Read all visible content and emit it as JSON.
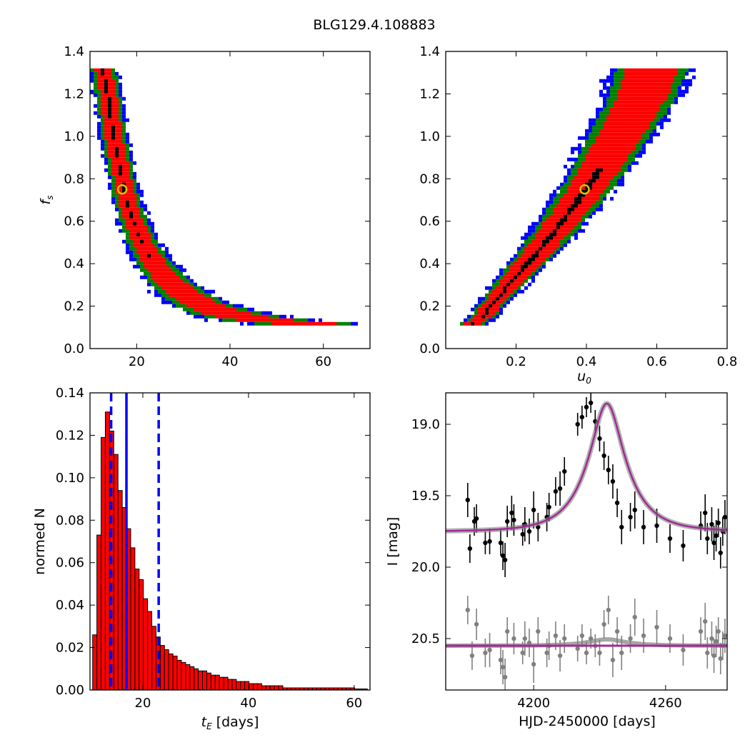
{
  "title": "BLG129.4.108883",
  "colors": {
    "c1": "#0000ff",
    "c2": "#008000",
    "c3": "#ff0000",
    "c4": "#000000",
    "marker_edge": "#d6c800",
    "hist_fill": "#ff0000",
    "model": "#a02b93",
    "gray": "#808080"
  },
  "chart_data": [
    {
      "type": "heatmap",
      "panel": "top-left",
      "ylabel": "f_s",
      "xlim": [
        10,
        70
      ],
      "ylim": [
        0.0,
        1.4
      ],
      "xticks": [
        "20",
        "40",
        "60"
      ],
      "yticks": [
        "0.0",
        "0.2",
        "0.4",
        "0.6",
        "0.8",
        "1.0",
        "1.2",
        "1.4"
      ],
      "levels": [
        "blue",
        "green",
        "red",
        "black"
      ],
      "best_fit": {
        "x": 16.9,
        "y": 0.75
      },
      "ridge": [
        [
          12.5,
          1.32
        ],
        [
          13.5,
          1.2
        ],
        [
          14.8,
          1.0
        ],
        [
          16.2,
          0.85
        ],
        [
          17.6,
          0.7
        ],
        [
          19.2,
          0.6
        ],
        [
          21,
          0.5
        ],
        [
          23.5,
          0.41
        ],
        [
          26,
          0.34
        ],
        [
          29,
          0.28
        ],
        [
          33,
          0.22
        ],
        [
          38,
          0.18
        ],
        [
          44,
          0.15
        ],
        [
          52,
          0.13
        ],
        [
          59,
          0.12
        ]
      ],
      "ridge_width_x": [
        1.8,
        1.8,
        1.8,
        1.8,
        1.9,
        2.0,
        2.2,
        2.5,
        3.0,
        3.5,
        4.0,
        5.0,
        6.0,
        7.0,
        7.0
      ],
      "inner_width_x": [
        0.9,
        0.9,
        0.8,
        0.8,
        0.8,
        0.8,
        0.7,
        0.6,
        0.5,
        0.4,
        0,
        0,
        0,
        0,
        0
      ]
    },
    {
      "type": "heatmap",
      "panel": "top-right",
      "xlabel": "u_0",
      "xlim": [
        0.0,
        0.8
      ],
      "ylim": [
        0.0,
        1.4
      ],
      "xticks": [
        "0.2",
        "0.4",
        "0.6",
        "0.8"
      ],
      "yticks": [
        "0.0",
        "0.2",
        "0.4",
        "0.6",
        "0.8",
        "1.0",
        "1.2",
        "1.4"
      ],
      "levels": [
        "blue",
        "green",
        "red",
        "black"
      ],
      "best_fit": {
        "x": 0.395,
        "y": 0.75
      },
      "ridge_fn": "fs = 2.05*u0^1.12 approx",
      "ridge": [
        [
          0.07,
          0.12
        ],
        [
          0.1,
          0.16
        ],
        [
          0.15,
          0.26
        ],
        [
          0.2,
          0.36
        ],
        [
          0.25,
          0.45
        ],
        [
          0.3,
          0.55
        ],
        [
          0.35,
          0.66
        ],
        [
          0.4,
          0.77
        ],
        [
          0.45,
          0.9
        ],
        [
          0.5,
          1.04
        ],
        [
          0.55,
          1.18
        ],
        [
          0.58,
          1.32
        ]
      ],
      "ridge_width_x": [
        0.025,
        0.025,
        0.03,
        0.035,
        0.04,
        0.045,
        0.05,
        0.055,
        0.06,
        0.065,
        0.07,
        0.075
      ]
    },
    {
      "type": "bar",
      "panel": "bottom-left",
      "xlabel": "t_E [days]",
      "ylabel": "normed N",
      "xlim": [
        10,
        63
      ],
      "ylim": [
        0.0,
        0.14
      ],
      "xticks": [
        "20",
        "40",
        "60"
      ],
      "yticks": [
        "0.00",
        "0.02",
        "0.04",
        "0.06",
        "0.08",
        "0.10",
        "0.12",
        "0.14"
      ],
      "bin_start": 10.5,
      "bin_width": 0.8,
      "values": [
        0.026,
        0.073,
        0.119,
        0.131,
        0.122,
        0.111,
        0.094,
        0.086,
        0.076,
        0.067,
        0.057,
        0.052,
        0.043,
        0.037,
        0.03,
        0.025,
        0.021,
        0.019,
        0.017,
        0.016,
        0.014,
        0.013,
        0.012,
        0.011,
        0.01,
        0.009,
        0.009,
        0.008,
        0.007,
        0.007,
        0.006,
        0.006,
        0.005,
        0.005,
        0.004,
        0.004,
        0.004,
        0.003,
        0.003,
        0.003,
        0.002,
        0.002,
        0.002,
        0.002,
        0.002,
        0.001,
        0.001,
        0.001,
        0.001,
        0.001,
        0.001,
        0.001,
        0.001,
        0.001,
        0.001,
        0.001,
        0.001,
        0.001,
        0.001,
        0.001,
        0.001,
        0.001,
        0.0005,
        0.0005,
        0.0005
      ],
      "median": 16.9,
      "lower": 14.0,
      "upper": 23.0
    },
    {
      "type": "scatter",
      "panel": "bottom-right",
      "xlabel": "HJD-2450000 [days]",
      "ylabel": "I [mag]",
      "xlim": [
        4160,
        4288
      ],
      "ylim": [
        20.86,
        18.78
      ],
      "xticks": [
        "4200",
        "4260"
      ],
      "yticks": [
        "19.0",
        "19.5",
        "20.0",
        "20.5"
      ],
      "model": {
        "baseline": 19.75,
        "t0": 4233.3,
        "u0": 0.39,
        "tE": 16.9,
        "fs": 0.75
      },
      "residual_baseline": 20.55,
      "data_points": [
        [
          4170,
          19.53,
          0.12
        ],
        [
          4171,
          19.87,
          0.1
        ],
        [
          4173,
          19.68,
          0.1
        ],
        [
          4174,
          19.66,
          0.1
        ],
        [
          4178,
          19.83,
          0.08
        ],
        [
          4180,
          19.82,
          0.09
        ],
        [
          4185,
          19.83,
          0.09
        ],
        [
          4186,
          19.92,
          0.1
        ],
        [
          4187,
          19.95,
          0.12
        ],
        [
          4188,
          19.68,
          0.11
        ],
        [
          4190,
          19.62,
          0.12
        ],
        [
          4191,
          19.67,
          0.11
        ],
        [
          4195,
          19.77,
          0.08
        ],
        [
          4196,
          19.7,
          0.12
        ],
        [
          4198,
          19.75,
          0.09
        ],
        [
          4200,
          19.6,
          0.13
        ],
        [
          4202,
          19.72,
          0.1
        ],
        [
          4206,
          19.65,
          0.1
        ],
        [
          4207,
          19.58,
          0.1
        ],
        [
          4210,
          19.47,
          0.1
        ],
        [
          4212,
          19.45,
          0.12
        ],
        [
          4214,
          19.33,
          0.1
        ],
        [
          4220,
          19.0,
          0.08
        ],
        [
          4222,
          18.95,
          0.08
        ],
        [
          4224,
          18.88,
          0.07
        ],
        [
          4226,
          18.85,
          0.07
        ],
        [
          4228,
          18.98,
          0.08
        ],
        [
          4230,
          19.1,
          0.09
        ],
        [
          4232,
          19.22,
          0.1
        ],
        [
          4234,
          19.32,
          0.1
        ],
        [
          4236,
          19.4,
          0.12
        ],
        [
          4238,
          19.55,
          0.1
        ],
        [
          4240,
          19.72,
          0.12
        ],
        [
          4244,
          19.65,
          0.1
        ],
        [
          4246,
          19.6,
          0.13
        ],
        [
          4250,
          19.72,
          0.12
        ],
        [
          4256,
          19.71,
          0.12
        ],
        [
          4262,
          19.8,
          0.1
        ],
        [
          4268,
          19.85,
          0.11
        ],
        [
          4276,
          19.71,
          0.1
        ],
        [
          4278,
          19.62,
          0.13
        ],
        [
          4279,
          19.8,
          0.11
        ],
        [
          4281,
          19.7,
          0.12
        ],
        [
          4282,
          19.83,
          0.12
        ],
        [
          4283,
          19.78,
          0.11
        ],
        [
          4284,
          19.69,
          0.1
        ],
        [
          4285,
          19.9,
          0.11
        ],
        [
          4286,
          19.75,
          0.1
        ],
        [
          4287,
          19.65,
          0.12
        ]
      ],
      "residual_points": [
        [
          4170,
          20.3,
          0.1
        ],
        [
          4172,
          20.62,
          0.1
        ],
        [
          4174,
          20.4,
          0.11
        ],
        [
          4178,
          20.6,
          0.1
        ],
        [
          4180,
          20.58,
          0.12
        ],
        [
          4185,
          20.65,
          0.1
        ],
        [
          4186,
          20.7,
          0.12
        ],
        [
          4187,
          20.77,
          0.13
        ],
        [
          4188,
          20.45,
          0.1
        ],
        [
          4191,
          20.5,
          0.11
        ],
        [
          4195,
          20.6,
          0.08
        ],
        [
          4196,
          20.5,
          0.12
        ],
        [
          4198,
          20.53,
          0.1
        ],
        [
          4200,
          20.68,
          0.13
        ],
        [
          4202,
          20.45,
          0.1
        ],
        [
          4206,
          20.6,
          0.1
        ],
        [
          4207,
          20.55,
          0.1
        ],
        [
          4210,
          20.48,
          0.1
        ],
        [
          4212,
          20.62,
          0.11
        ],
        [
          4214,
          20.5,
          0.1
        ],
        [
          4220,
          20.57,
          0.09
        ],
        [
          4222,
          20.48,
          0.08
        ],
        [
          4224,
          20.6,
          0.08
        ],
        [
          4226,
          20.5,
          0.07
        ],
        [
          4228,
          20.55,
          0.08
        ],
        [
          4230,
          20.6,
          0.09
        ],
        [
          4232,
          20.4,
          0.1
        ],
        [
          4234,
          20.3,
          0.1
        ],
        [
          4236,
          20.65,
          0.12
        ],
        [
          4238,
          20.45,
          0.1
        ],
        [
          4240,
          20.6,
          0.12
        ],
        [
          4244,
          20.5,
          0.1
        ],
        [
          4246,
          20.35,
          0.13
        ],
        [
          4250,
          20.48,
          0.12
        ],
        [
          4256,
          20.42,
          0.12
        ],
        [
          4262,
          20.5,
          0.1
        ],
        [
          4268,
          20.58,
          0.11
        ],
        [
          4276,
          20.45,
          0.1
        ],
        [
          4278,
          20.38,
          0.13
        ],
        [
          4279,
          20.6,
          0.11
        ],
        [
          4281,
          20.5,
          0.12
        ],
        [
          4282,
          20.62,
          0.12
        ],
        [
          4283,
          20.52,
          0.11
        ],
        [
          4284,
          20.45,
          0.1
        ],
        [
          4285,
          20.64,
          0.11
        ],
        [
          4286,
          20.55,
          0.1
        ],
        [
          4287,
          20.48,
          0.12
        ]
      ]
    }
  ]
}
